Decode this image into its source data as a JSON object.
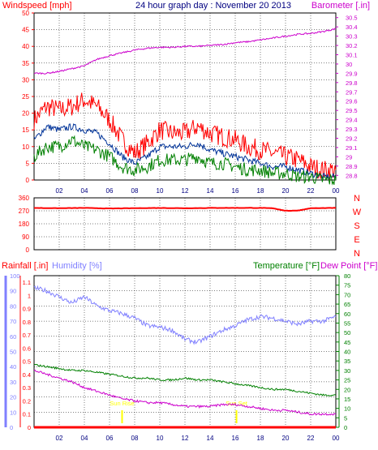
{
  "title": "24 hour graph day : November 20 2013",
  "colors": {
    "wind_high": "#ff0000",
    "wind_avg": "#003399",
    "wind_low": "#008000",
    "barometer": "#cc00cc",
    "direction": "#ff0000",
    "rainfall": "#ff0000",
    "humidity": "#8080ff",
    "temperature": "#008000",
    "dew_point": "#cc00cc",
    "sunrise_sunset": "#ffff00",
    "grid": "#000000"
  },
  "chart_data": [
    {
      "type": "line",
      "left_axis_label": "Windspeed [mph]",
      "right_axis_label": "Barometer [.in]",
      "x_tick_labels": [
        "02",
        "04",
        "06",
        "08",
        "10",
        "12",
        "14",
        "16",
        "18",
        "20",
        "22",
        "00"
      ],
      "left_ticks": [
        "0",
        "5",
        "10",
        "15",
        "20",
        "25",
        "30",
        "35",
        "40",
        "45",
        "50"
      ],
      "right_ticks": [
        "28.8",
        "28.9",
        "29",
        "29.1",
        "29.2",
        "29.3",
        "29.4",
        "29.5",
        "29.6",
        "29.7",
        "29.8",
        "29.9",
        "30",
        "30.1",
        "30.2",
        "30.3",
        "30.4",
        "30.5"
      ],
      "ylim_left": [
        0,
        50
      ],
      "ylim_right": [
        28.75,
        30.55
      ],
      "series": [
        {
          "key": "wind_high",
          "axis": "left",
          "x": [
            0,
            1,
            2,
            3,
            4,
            5,
            6,
            7,
            8,
            9,
            10,
            11,
            12,
            13,
            14,
            15,
            16,
            17,
            18,
            19,
            20,
            21,
            22,
            23,
            24
          ],
          "values": [
            18,
            22,
            21,
            22,
            24,
            22,
            18,
            12,
            8,
            11,
            15,
            14,
            14,
            16,
            14,
            13,
            12,
            10,
            9,
            8,
            7,
            6,
            4,
            3,
            3
          ]
        },
        {
          "key": "wind_avg",
          "axis": "left",
          "x": [
            0,
            1,
            2,
            3,
            4,
            5,
            6,
            7,
            8,
            9,
            10,
            11,
            12,
            13,
            14,
            15,
            16,
            17,
            18,
            19,
            20,
            21,
            22,
            23,
            24
          ],
          "values": [
            12,
            16,
            15,
            16,
            15,
            14,
            11,
            7,
            5,
            7,
            10,
            10,
            10,
            11,
            9,
            8,
            7,
            6,
            5,
            4,
            4,
            3,
            2,
            1,
            1
          ]
        },
        {
          "key": "wind_low",
          "axis": "left",
          "x": [
            0,
            1,
            2,
            3,
            4,
            5,
            6,
            7,
            8,
            9,
            10,
            11,
            12,
            13,
            14,
            15,
            16,
            17,
            18,
            19,
            20,
            21,
            22,
            23,
            24
          ],
          "values": [
            7,
            10,
            10,
            12,
            10,
            9,
            7,
            4,
            3,
            4,
            6,
            6,
            6,
            7,
            5,
            5,
            4,
            3,
            3,
            2,
            2,
            1,
            1,
            0,
            0
          ]
        },
        {
          "key": "barometer",
          "axis": "right",
          "x": [
            0,
            1,
            2,
            3,
            4,
            5,
            6,
            7,
            8,
            9,
            10,
            11,
            12,
            13,
            14,
            15,
            16,
            17,
            18,
            19,
            20,
            21,
            22,
            23,
            24
          ],
          "values": [
            29.9,
            29.9,
            29.92,
            29.95,
            29.98,
            30.05,
            30.09,
            30.12,
            30.15,
            30.17,
            30.18,
            30.18,
            30.19,
            30.19,
            30.2,
            30.21,
            30.23,
            30.24,
            30.26,
            30.28,
            30.3,
            30.32,
            30.33,
            30.35,
            30.38
          ]
        }
      ]
    },
    {
      "type": "line",
      "left_ticks": [
        "0",
        "90",
        "180",
        "270",
        "360"
      ],
      "compass_labels": [
        "N",
        "W",
        "S",
        "E",
        "N"
      ],
      "x_tick_labels": [
        "02",
        "04",
        "06",
        "08",
        "10",
        "12",
        "14",
        "16",
        "18",
        "20",
        "22",
        "00"
      ],
      "ylim": [
        0,
        360
      ],
      "series": [
        {
          "key": "direction",
          "x": [
            0,
            2,
            4,
            6,
            8,
            10,
            12,
            14,
            16,
            18,
            19,
            20,
            21,
            22,
            24
          ],
          "values": [
            290,
            288,
            290,
            286,
            288,
            290,
            288,
            290,
            290,
            290,
            288,
            270,
            272,
            288,
            290
          ]
        }
      ]
    },
    {
      "type": "line",
      "left_axis_label_1": "Rainfall [.in]",
      "left_axis_label_2": "Humidity [%]",
      "right_axis_label_1": "Temperature [°F]",
      "right_axis_label_2": "Dew Point [°F]",
      "rain_ticks": [
        "0",
        "0.1",
        "0.2",
        "0.3",
        "0.4",
        "0.5",
        "0.6",
        "0.7",
        "0.8",
        "0.9",
        "1",
        "1.1"
      ],
      "humidity_ticks": [
        "0",
        "10",
        "20",
        "30",
        "40",
        "50",
        "60",
        "70",
        "80",
        "90",
        "100"
      ],
      "temp_ticks": [
        "0",
        "5",
        "10",
        "15",
        "20",
        "25",
        "30",
        "35",
        "40",
        "45",
        "50",
        "55",
        "60",
        "65",
        "70",
        "75",
        "80"
      ],
      "x_tick_labels": [
        "02",
        "04",
        "06",
        "08",
        "10",
        "12",
        "14",
        "16",
        "18",
        "20",
        "22",
        "00"
      ],
      "ylim_humidity": [
        0,
        100
      ],
      "ylim_temp": [
        0,
        80
      ],
      "annotations": [
        {
          "key": "sunrise",
          "x": 7.0,
          "label": "Sun Rise"
        },
        {
          "key": "sunset",
          "x": 16.1,
          "label": "Sun Set"
        }
      ],
      "series": [
        {
          "key": "rainfall",
          "axis": "rain",
          "x": [
            0,
            24
          ],
          "values": [
            0,
            0
          ]
        },
        {
          "key": "humidity",
          "axis": "humidity",
          "x": [
            0,
            1,
            2,
            3,
            4,
            5,
            6,
            7,
            8,
            9,
            10,
            11,
            12,
            13,
            14,
            15,
            16,
            17,
            18,
            19,
            20,
            21,
            22,
            23,
            24
          ],
          "values": [
            92,
            90,
            86,
            82,
            86,
            80,
            77,
            75,
            72,
            67,
            66,
            64,
            58,
            56,
            60,
            64,
            67,
            71,
            73,
            72,
            70,
            68,
            70,
            70,
            73
          ]
        },
        {
          "key": "temperature",
          "axis": "temp",
          "x": [
            0,
            1,
            2,
            3,
            4,
            5,
            6,
            7,
            8,
            9,
            10,
            11,
            12,
            13,
            14,
            15,
            16,
            17,
            18,
            19,
            20,
            21,
            22,
            23,
            24
          ],
          "values": [
            33,
            32,
            31,
            30,
            30,
            29,
            28,
            27,
            26,
            26,
            25,
            25,
            26,
            25,
            25,
            24,
            23,
            22,
            21,
            20,
            20,
            19,
            18,
            17,
            17
          ]
        },
        {
          "key": "dew_point",
          "axis": "temp",
          "x": [
            0,
            1,
            2,
            3,
            4,
            5,
            6,
            7,
            8,
            9,
            10,
            11,
            12,
            13,
            14,
            15,
            16,
            17,
            18,
            19,
            20,
            21,
            22,
            23,
            24
          ],
          "values": [
            30,
            28,
            26,
            24,
            21,
            19,
            17,
            15,
            14,
            13,
            13,
            12,
            11,
            11,
            11,
            12,
            12,
            11,
            10,
            9,
            9,
            8,
            7,
            7,
            7
          ]
        }
      ]
    }
  ]
}
